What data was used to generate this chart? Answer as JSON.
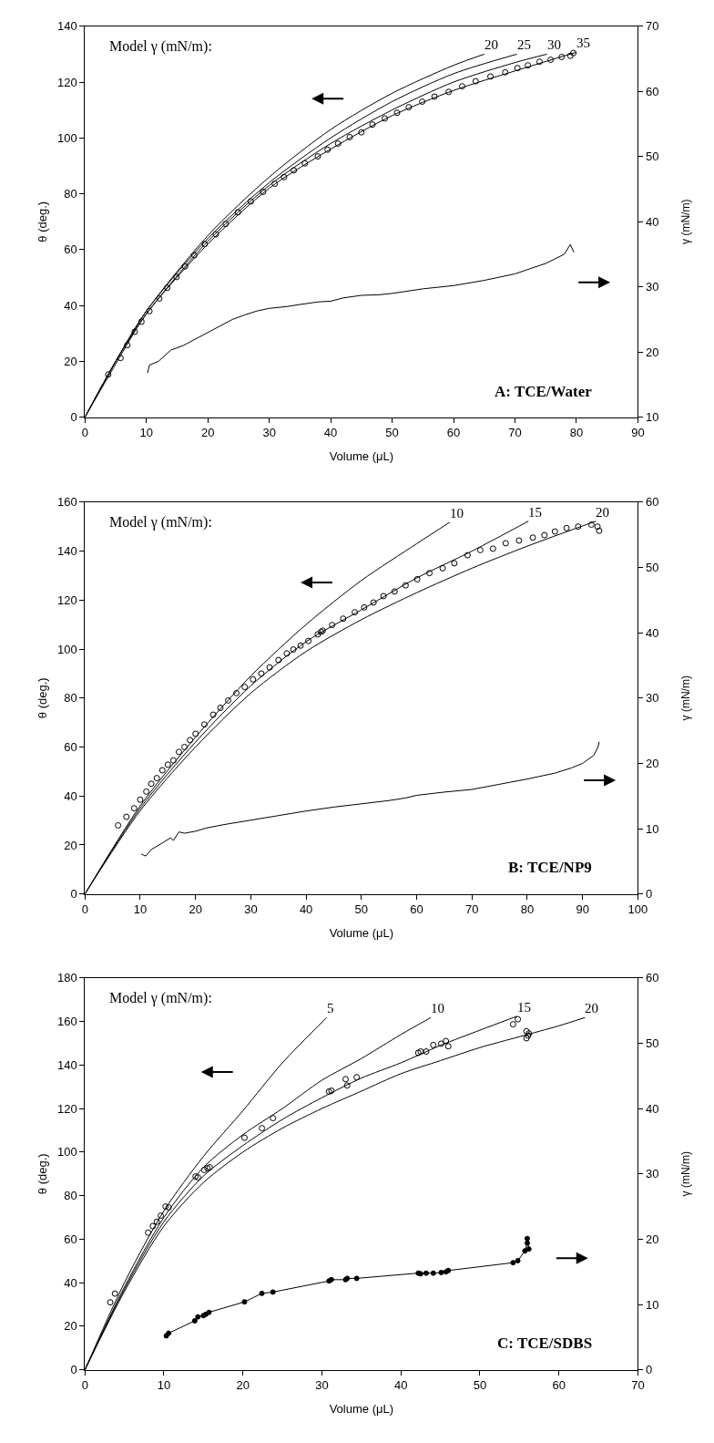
{
  "chart_data": [
    {
      "type": "line",
      "xlabel": "Volume (μL)",
      "ylabel": "θ (deg.)",
      "y2label": "γ (mN/m)",
      "xlim": [
        0,
        90
      ],
      "xticks": [
        0,
        10,
        20,
        30,
        40,
        50,
        60,
        70,
        80,
        90
      ],
      "ylim": [
        0,
        140
      ],
      "yticks": [
        0,
        20,
        40,
        60,
        80,
        100,
        120,
        140
      ],
      "y2lim": [
        10,
        70
      ],
      "y2ticks": [
        10,
        20,
        30,
        40,
        50,
        60,
        70
      ],
      "annotations": [
        "Model γ (mN/m):",
        "A: TCE/Water"
      ],
      "series": [
        {
          "name": "20",
          "color": "#000000",
          "marker": "none",
          "x": [
            0,
            5,
            10,
            20,
            30,
            40,
            50,
            60,
            65
          ],
          "values": [
            0,
            20,
            38,
            65,
            86,
            103,
            116,
            126,
            130
          ]
        },
        {
          "name": "25",
          "color": "#000000",
          "marker": "none",
          "x": [
            0,
            5,
            10,
            20,
            30,
            40,
            50,
            60,
            70.3
          ],
          "values": [
            0,
            20,
            38,
            64,
            84,
            100,
            113,
            123,
            130
          ]
        },
        {
          "name": "30",
          "color": "#000000",
          "marker": "none",
          "x": [
            0,
            5,
            10,
            20,
            30,
            40,
            50,
            60,
            70,
            75.2
          ],
          "values": [
            0,
            20,
            37,
            63,
            83,
            98,
            110,
            120,
            127,
            130
          ]
        },
        {
          "name": "35",
          "color": "#000000",
          "marker": "none",
          "x": [
            0,
            5,
            10,
            20,
            30,
            40,
            50,
            60,
            70,
            80
          ],
          "values": [
            0,
            19,
            37,
            62,
            82,
            96,
            108,
            117,
            124,
            130.7
          ]
        },
        {
          "type": "scatter",
          "color": "#000000",
          "marker": "circle",
          "x": [
            3.8,
            5.8,
            6.9,
            8.1,
            9.2,
            10.5,
            12.1,
            13.4,
            14.9,
            16.3,
            17.8,
            19.5,
            21.3,
            22.9,
            24.9,
            27,
            29,
            30.9,
            32.4,
            34,
            35.8,
            37.9,
            39.5,
            41.2,
            43.1,
            45,
            46.8,
            48.8,
            50.8,
            52.7,
            54.9,
            56.9,
            59.2,
            61.4,
            63.6,
            66,
            68.4,
            70.4,
            72.1,
            74,
            75.8,
            77.6,
            79,
            79.5
          ],
          "values": [
            15.3,
            21.2,
            25.8,
            30.6,
            34.2,
            38,
            42.5,
            46.3,
            50.2,
            54,
            58,
            62,
            65.5,
            69.2,
            73.4,
            77.3,
            80.7,
            83.6,
            86,
            88.4,
            90.9,
            93.4,
            95.8,
            98,
            100.3,
            102,
            104.8,
            107,
            109,
            111,
            113,
            114.8,
            116.5,
            118.5,
            120.3,
            122,
            123.5,
            125,
            126,
            127.3,
            128,
            129,
            129.4,
            130.4
          ]
        },
        {
          "axis": "y2",
          "color": "#000000",
          "marker": "none",
          "x": [
            10.2,
            10.5,
            12,
            14,
            16,
            18,
            20,
            22,
            24,
            26,
            28,
            30,
            33,
            35,
            38,
            40,
            42,
            45,
            48,
            50,
            55,
            60,
            65,
            70,
            75,
            78,
            79,
            79.6
          ],
          "values": [
            16.8,
            18,
            18.6,
            20.3,
            21,
            22,
            23,
            24,
            25,
            25.7,
            26.3,
            26.7,
            27,
            27.3,
            27.7,
            27.8,
            28.3,
            28.7,
            28.8,
            29,
            29.7,
            30.2,
            31,
            32,
            33.6,
            35,
            36.5,
            35.3
          ]
        }
      ]
    },
    {
      "type": "line",
      "xlabel": "Volume (μL)",
      "ylabel": "θ (deg.)",
      "y2label": "γ (mN/m)",
      "xlim": [
        0,
        100
      ],
      "xticks": [
        0,
        10,
        20,
        30,
        40,
        50,
        60,
        70,
        80,
        90,
        100
      ],
      "ylim": [
        0,
        160
      ],
      "yticks": [
        0,
        20,
        40,
        60,
        80,
        100,
        120,
        140,
        160
      ],
      "y2lim": [
        0,
        60
      ],
      "y2ticks": [
        0,
        10,
        20,
        30,
        40,
        50,
        60
      ],
      "annotations": [
        "Model γ (mN/m):",
        "B: TCE/NP9"
      ],
      "series": [
        {
          "name": "10",
          "color": "#000000",
          "marker": "none",
          "x": [
            0,
            10,
            20,
            30,
            40,
            50,
            60,
            66
          ],
          "values": [
            0,
            36,
            64,
            89,
            110,
            128,
            143,
            151.8
          ]
        },
        {
          "name": "15",
          "color": "#000000",
          "marker": "none",
          "x": [
            0,
            10,
            20,
            30,
            40,
            50,
            60,
            70,
            80.2
          ],
          "values": [
            0,
            35,
            62,
            85,
            103,
            116,
            129,
            140,
            152.2
          ]
        },
        {
          "name": "20",
          "color": "#000000",
          "marker": "none",
          "x": [
            0,
            10,
            20,
            30,
            40,
            50,
            60,
            70,
            80,
            92.4
          ],
          "values": [
            0,
            34,
            60,
            82,
            99,
            112,
            123,
            133,
            142,
            152.2
          ]
        },
        {
          "type": "scatter",
          "color": "#000000",
          "marker": "circle",
          "x": [
            6,
            7.5,
            8.9,
            10,
            11.1,
            12,
            13,
            14,
            15,
            16,
            17,
            18,
            19,
            20,
            21.6,
            23.2,
            24.5,
            25.9,
            27.4,
            28.9,
            30.4,
            31.9,
            33.4,
            35,
            36.5,
            37.7,
            39,
            40.4,
            42.1,
            42.7,
            43,
            44.7,
            46.7,
            48.8,
            50.5,
            52.2,
            54,
            56,
            58,
            60.1,
            62.3,
            64.7,
            66.8,
            69.2,
            71.5,
            73.8,
            76.1,
            78.5,
            81,
            83.1,
            85,
            87.1,
            89.2,
            91.6,
            92.7,
            93
          ],
          "values": [
            28,
            31.5,
            35,
            38.5,
            41.8,
            45,
            47.3,
            50.5,
            52.8,
            54.5,
            58,
            60,
            62.8,
            65.4,
            69.2,
            73.2,
            76,
            79,
            82,
            84.5,
            87.6,
            90,
            92.5,
            95.5,
            98.2,
            99.8,
            101.4,
            103.3,
            106,
            107,
            107.5,
            109.8,
            112.4,
            115,
            117,
            119,
            121.6,
            123.5,
            126,
            128.5,
            131,
            133,
            135,
            138.3,
            140.4,
            141,
            143.2,
            144.3,
            145.5,
            146.5,
            148,
            149.4,
            150,
            150.8,
            150,
            148.3
          ]
        },
        {
          "axis": "y2",
          "color": "#000000",
          "marker": "none",
          "x": [
            10.2,
            11,
            12,
            14,
            15.5,
            16,
            17,
            18,
            20,
            22,
            25,
            30,
            35,
            40,
            45,
            50,
            55,
            58,
            60,
            65,
            70,
            75,
            80,
            85,
            88,
            90,
            92,
            92.8,
            93
          ],
          "values": [
            6.1,
            5.8,
            6.8,
            7.8,
            8.6,
            8.2,
            9.5,
            9.3,
            9.6,
            10.1,
            10.6,
            11.3,
            12,
            12.7,
            13.3,
            13.8,
            14.3,
            14.7,
            15.1,
            15.6,
            16,
            16.8,
            17.6,
            18.5,
            19.3,
            20,
            21.2,
            22.5,
            23.3
          ]
        }
      ]
    },
    {
      "type": "line",
      "xlabel": "Volume (μL)",
      "ylabel": "θ (deg.)",
      "y2label": "γ (mN/m)",
      "xlim": [
        0,
        70
      ],
      "xticks": [
        0,
        10,
        20,
        30,
        40,
        50,
        60,
        70
      ],
      "ylim": [
        0,
        180
      ],
      "yticks": [
        0,
        20,
        40,
        60,
        80,
        100,
        120,
        140,
        160,
        180
      ],
      "y2lim": [
        0,
        60
      ],
      "y2ticks": [
        0,
        10,
        20,
        30,
        40,
        50,
        60
      ],
      "annotations": [
        "Model γ (mN/m):",
        "C: TCE/SDBS"
      ],
      "series": [
        {
          "name": "5",
          "color": "#000000",
          "marker": "none",
          "x": [
            0,
            5,
            10,
            15,
            20,
            25,
            30.6
          ],
          "values": [
            0,
            40,
            73,
            98,
            119,
            141,
            161.8
          ]
        },
        {
          "name": "10",
          "color": "#000000",
          "marker": "none",
          "x": [
            0,
            5,
            10,
            15,
            20,
            25,
            30,
            35,
            40,
            43.8
          ],
          "values": [
            0,
            38,
            70,
            93,
            108,
            120,
            133,
            143,
            154,
            161.8
          ]
        },
        {
          "name": "15",
          "color": "#000000",
          "marker": "none",
          "x": [
            0,
            5,
            10,
            15,
            20,
            25,
            30,
            35,
            40,
            45,
            50,
            54.7
          ],
          "values": [
            0,
            37,
            68,
            89,
            103,
            115,
            125,
            134,
            141,
            149,
            156,
            162.4
          ]
        },
        {
          "name": "20",
          "color": "#000000",
          "marker": "none",
          "x": [
            0,
            5,
            10,
            15,
            20,
            25,
            30,
            35,
            40,
            45,
            50,
            55,
            60,
            63.3
          ],
          "values": [
            0,
            36,
            66,
            86,
            100,
            111,
            120,
            128,
            136,
            142,
            148,
            153,
            158,
            161.8
          ]
        },
        {
          "type": "scatter",
          "color": "#000000",
          "marker": "circle",
          "x": [
            3.2,
            3.8,
            8,
            8.6,
            9.1,
            9.6,
            10.2,
            10.6,
            14,
            14.3,
            15.1,
            15.5,
            15.8,
            20.2,
            22.4,
            23.8,
            30.9,
            31.2,
            33,
            33.2,
            34.4,
            42.2,
            42.5,
            43.2,
            44.1,
            45.1,
            45.7,
            46,
            54.2,
            54.8,
            55.9,
            55.9,
            56.1,
            56.2
          ],
          "values": [
            31,
            35,
            63,
            66,
            68,
            70.8,
            75,
            74.6,
            88.8,
            88.4,
            91.8,
            92.6,
            93,
            106.6,
            111,
            115.6,
            127.8,
            128.2,
            133.5,
            130.6,
            134.4,
            145.6,
            146.2,
            146.2,
            149.2,
            149.8,
            151,
            148.6,
            158.7,
            161,
            155.5,
            152.3,
            153.5,
            154.5
          ]
        },
        {
          "axis": "y2",
          "color": "#000000",
          "marker": "circle",
          "x": [
            10.3,
            10.6,
            13.9,
            14.3,
            15,
            15.3,
            15.7,
            20.2,
            22.4,
            23.8,
            30.9,
            31.2,
            33,
            33.2,
            34.4,
            42.2,
            42.5,
            43.2,
            44.1,
            45.1,
            45.7,
            46,
            54.2,
            54.8,
            55.7,
            56,
            56,
            56.2
          ],
          "values": [
            5.2,
            5.6,
            7.5,
            8.1,
            8.3,
            8.5,
            8.8,
            10.4,
            11.7,
            11.9,
            13.6,
            13.8,
            13.8,
            14,
            14,
            14.8,
            14.7,
            14.8,
            14.8,
            14.9,
            15,
            15.2,
            16.4,
            16.7,
            18.2,
            19.4,
            20.1,
            18.5
          ]
        }
      ]
    }
  ]
}
